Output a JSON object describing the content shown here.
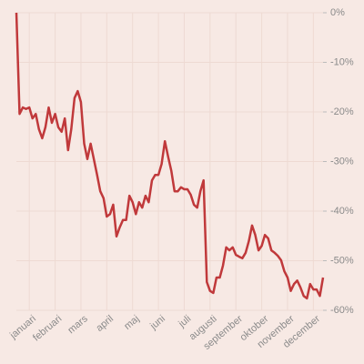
{
  "chart_data": {
    "type": "line",
    "categories": [
      null,
      null,
      null,
      null,
      "januari",
      null,
      null,
      null,
      null,
      null,
      null,
      null,
      "februari",
      null,
      null,
      null,
      null,
      null,
      null,
      null,
      "mars",
      null,
      null,
      null,
      null,
      null,
      null,
      null,
      "april",
      null,
      null,
      null,
      null,
      null,
      null,
      null,
      "maj",
      null,
      null,
      null,
      null,
      null,
      null,
      null,
      "juni",
      null,
      null,
      null,
      null,
      null,
      null,
      null,
      "juli",
      null,
      null,
      null,
      null,
      null,
      null,
      null,
      "augusti",
      null,
      null,
      null,
      null,
      null,
      null,
      null,
      "september",
      null,
      null,
      null,
      null,
      null,
      null,
      null,
      "oktober",
      null,
      null,
      null,
      null,
      null,
      null,
      null,
      "november",
      null,
      null,
      null,
      null,
      null,
      null,
      null,
      "december",
      null,
      null,
      null
    ],
    "series": [
      {
        "color": "#c0393b",
        "values": [
          0,
          -20.4,
          -19.1,
          -19.4,
          -19.1,
          -21.3,
          -20.4,
          -23.5,
          -25.3,
          -23.1,
          -19.1,
          -22.2,
          -20.4,
          -23.1,
          -24,
          -21.3,
          -27.7,
          -23.5,
          -17.2,
          -15.8,
          -18,
          -26.4,
          -29.5,
          -26.4,
          -29.5,
          -32.7,
          -36,
          -37.4,
          -41.1,
          -40.6,
          -38.7,
          -45.1,
          -43.3,
          -41.8,
          -41.8,
          -36.9,
          -38.2,
          -40.6,
          -38.2,
          -39.3,
          -36.9,
          -38.2,
          -33.8,
          -32.7,
          -32.7,
          -30.5,
          -25.9,
          -29,
          -31.9,
          -36,
          -36,
          -35.2,
          -35.6,
          -35.6,
          -36.7,
          -38.7,
          -39.3,
          -36,
          -33.8,
          -54.3,
          -56.1,
          -56.5,
          -53.4,
          -53.4,
          -51,
          -47.3,
          -47.9,
          -47.3,
          -48.8,
          -49.2,
          -49.5,
          -48.4,
          -46.1,
          -42.9,
          -44.8,
          -47.9,
          -47,
          -44.8,
          -45.5,
          -47.9,
          -48.4,
          -49,
          -49.9,
          -52.1,
          -53.4,
          -56.1,
          -54.7,
          -54,
          -55.4,
          -57.1,
          -57.6,
          -54.7,
          -55.8,
          -55.8,
          -57.1,
          -53.4
        ]
      }
    ],
    "ylim": [
      -60,
      0
    ],
    "yticks": [
      {
        "value": 0,
        "label": "0%"
      },
      {
        "value": -10,
        "label": "-10%"
      },
      {
        "value": -20,
        "label": "-20%"
      },
      {
        "value": -30,
        "label": "-30%"
      },
      {
        "value": -40,
        "label": "-40%"
      },
      {
        "value": -50,
        "label": "-50%"
      },
      {
        "value": -60,
        "label": "-60%"
      }
    ],
    "grid": true
  }
}
